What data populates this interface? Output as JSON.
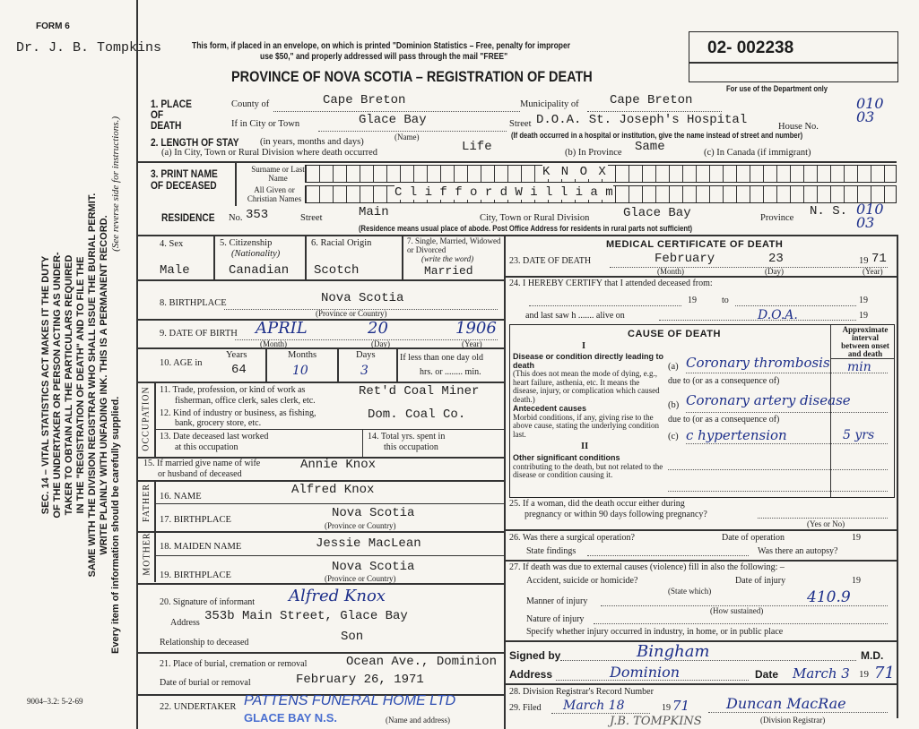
{
  "header": {
    "form_no": "FORM 6",
    "physician_stamp": "Dr. J. B. Tompkins",
    "mail_notice_1": "This form, if placed in an envelope, on which is printed \"Dominion Statistics – Free, penalty for improper",
    "mail_notice_2": "use $50,\" and properly addressed will pass through the mail \"FREE\"",
    "title": "PROVINCE OF NOVA SCOTIA – REGISTRATION OF DEATH",
    "registration_number": "02- 002238",
    "dept_use": "For use of the Department only",
    "dept_codes_1": "010 03",
    "dept_codes_2": "010 03"
  },
  "sidebar": {
    "lines": [
      "SEC. 14 – VITAL STATISTICS ACT MAKES IT THE DUTY",
      "OF THE UNDERTAKER OR PERSON ACTING AS UNDER-",
      "TAKER TO OBTAIN ALL THE PARTICULARS REQUIRED",
      "IN THE \"REGISTRATION OF DEATH\" AND TO FILE THE",
      "SAME WITH THE DIVISION REGISTRAR WHO SHALL ISSUE THE BURIAL PERMIT.",
      "WRITE PLAINLY WITH UNFADING INK. THIS IS A PERMANENT RECORD."
    ],
    "every_item": "Every item of information should be carefully supplied.",
    "see_reverse": "(See reverse side for instructions.)",
    "form_code": "9004–3.2: 5-2-69"
  },
  "place_of_death": {
    "label": "1. PLACE OF DEATH",
    "county_label": "County of",
    "county": "Cape Breton",
    "municipality_label": "Municipality of",
    "municipality": "Cape Breton",
    "city_label": "If in City or Town",
    "city": "Glace Bay",
    "name_note": "(Name)",
    "street_label": "Street",
    "street": "D.O.A. St. Joseph's Hospital",
    "house_label": "House No.",
    "hospital_note": "(If death occurred in a hospital or institution, give the name instead of street and number)"
  },
  "length_of_stay": {
    "label": "2. LENGTH OF STAY",
    "sub": "(in years, months and days)",
    "a_label": "(a) In City, Town or Rural Division where death occurred",
    "a": "Life",
    "b_label": "(b) In Province",
    "b": "Same",
    "c_label": "(c) In Canada (if immigrant)"
  },
  "name": {
    "label": "3. PRINT NAME OF DECEASED",
    "surname_label": "Surname or Last Name",
    "surname": "K N O X",
    "given_label": "All Given or Christian Names",
    "given": "C l i f f o r d     W i l l i a m"
  },
  "residence": {
    "label": "RESIDENCE",
    "no_label": "No.",
    "no": "353",
    "street_label": "Street",
    "street": "Main",
    "city_label": "City, Town or Rural Division",
    "city": "Glace Bay",
    "province_label": "Province",
    "province": "N. S.",
    "note": "(Residence means usual place of abode. Post Office Address for residents in rural parts not sufficient)"
  },
  "personal": {
    "sex_label": "4. Sex",
    "sex": "Male",
    "citizenship_label": "5. Citizenship",
    "citizenship_sub": "(Nationality)",
    "citizenship": "Canadian",
    "racial_label": "6. Racial Origin",
    "racial": "Scotch",
    "marital_label": "7. Single, Married, Widowed or Divorced",
    "marital_sub": "(write the word)",
    "marital": "Married",
    "birthplace_label": "8. BIRTHPLACE",
    "birthplace": "Nova Scotia",
    "prov_country": "(Province or Country)",
    "dob_label": "9. DATE OF BIRTH",
    "dob_month": "APRIL",
    "dob_day": "20",
    "dob_year": "1906",
    "month_note": "(Month)",
    "day_note": "(Day)",
    "year_note": "(Year)",
    "age_label": "10. AGE in",
    "years_label": "Years",
    "years": "64",
    "months_label": "Months",
    "months": "10",
    "days_label": "Days",
    "days": "3",
    "less_day": "If less than one day old",
    "hrs_min": "hrs. or ........ min."
  },
  "occupation": {
    "side_label": "OCCUPATION",
    "trade_label": "11. Trade, profession, or kind of work as",
    "trade_label2": "fisherman, office clerk, sales clerk, etc.",
    "trade": "Ret'd Coal Miner",
    "industry_label": "12. Kind of industry or business, as fishing,",
    "industry_label2": "bank, grocery store, etc.",
    "industry": "Dom. Coal Co.",
    "last_worked_label": "13. Date deceased last worked",
    "last_worked_label2": "at this occupation",
    "total_years_label": "14. Total yrs. spent in",
    "total_years_label2": "this occupation"
  },
  "spouse": {
    "label": "15. If married give name of wife",
    "label2": "or husband of deceased",
    "value": "Annie Knox"
  },
  "father": {
    "side_label": "FATHER",
    "name_label": "16. NAME",
    "name": "Alfred Knox",
    "birthplace_label": "17. BIRTHPLACE",
    "birthplace": "Nova Scotia"
  },
  "mother": {
    "side_label": "MOTHER",
    "maiden_label": "18. MAIDEN NAME",
    "maiden": "Jessie MacLean",
    "birthplace_label": "19. BIRTHPLACE",
    "birthplace": "Nova Scotia"
  },
  "informant": {
    "sig_label": "20. Signature of informant",
    "signature": "Alfred Knox",
    "address_label": "Address",
    "address": "353b Main Street, Glace Bay",
    "relationship_label": "Relationship to deceased",
    "relationship": "Son"
  },
  "burial": {
    "place_label": "21. Place of burial, cremation or removal",
    "place": "Ocean Ave., Dominion",
    "date_label": "Date of burial or removal",
    "date": "February 26, 1971"
  },
  "undertaker": {
    "label": "22. UNDERTAKER",
    "stamp_1": "PATTENS FUNERAL HOME LTD",
    "stamp_2": "GLACE BAY N.S.",
    "note": "(Name and address)"
  },
  "medical": {
    "title": "MEDICAL CERTIFICATE OF DEATH",
    "dod_label": "23. DATE OF DEATH",
    "dod_month": "February",
    "dod_day": "23",
    "dod_year_prefix": "19",
    "dod_year": "71",
    "certify_label": "24. I HEREBY CERTIFY that I attended deceased from:",
    "nineteen": "19",
    "to": "to",
    "last_saw": "and last saw h ....... alive on",
    "attended_note": "D.O.A."
  },
  "cause": {
    "title": "CAUSE OF DEATH",
    "part_i": "I",
    "part_ii": "II",
    "interval_label": "Approximate interval between onset and death",
    "direct_label": "Disease or condition directly leading to death",
    "direct_desc": "(This does not mean the mode of dying, e.g., heart failure, asthenia, etc. It means the disease, injury, or complication which caused death.)",
    "antecedent_label": "Antecedent causes",
    "antecedent_desc": "Morbid conditions, if any, giving rise to the above cause, stating the underlying condition last.",
    "other_label": "Other significant conditions",
    "other_desc": "contributing to the death, but not related to the disease or condition causing it.",
    "a_mark": "(a)",
    "b_mark": "(b)",
    "c_mark": "(c)",
    "due_to": "due to (or as a consequence of)",
    "a": "Coronary thrombosis",
    "a_interval": "min",
    "b": "Coronary artery disease",
    "c": "c hypertension",
    "c_interval": "5 yrs"
  },
  "q25": {
    "label": "25. If a woman, did the death occur either during",
    "label2": "pregnancy or within 90 days following pregnancy?",
    "note": "(Yes or No)"
  },
  "q26": {
    "label": "26. Was there a surgical operation?",
    "date_label": "Date of operation",
    "nineteen": "19",
    "findings_label": "State findings",
    "autopsy_label": "Was there an autopsy?"
  },
  "q27": {
    "label": "27. If death was due to external causes (violence) fill in also the following: –",
    "accident_label": "Accident, suicide or homicide?",
    "state_which": "(State which)",
    "date_injury_label": "Date of injury",
    "nineteen": "19",
    "manner_label": "Manner of injury",
    "how": "(How sustained)",
    "code": "410.9",
    "nature_label": "Nature of injury",
    "where_label": "Specify whether injury occurred in industry, in home, or in public place"
  },
  "signature": {
    "signed_label": "Signed by",
    "signer": "Bingham",
    "md": "M.D.",
    "address_label": "Address",
    "address": "Dominion",
    "date_label": "Date",
    "date": "March 3",
    "year_prefix": "19",
    "year": "71"
  },
  "registrar": {
    "record_label": "28. Division Registrar's Record Number",
    "filed_label": "29. Filed",
    "filed": "March 18",
    "year_prefix": "19",
    "year": "71",
    "registrar_sig": "Duncan MacRae",
    "registrar_note": "(Division Registrar)",
    "footer_sig": "J.B. TOMPKINS"
  }
}
